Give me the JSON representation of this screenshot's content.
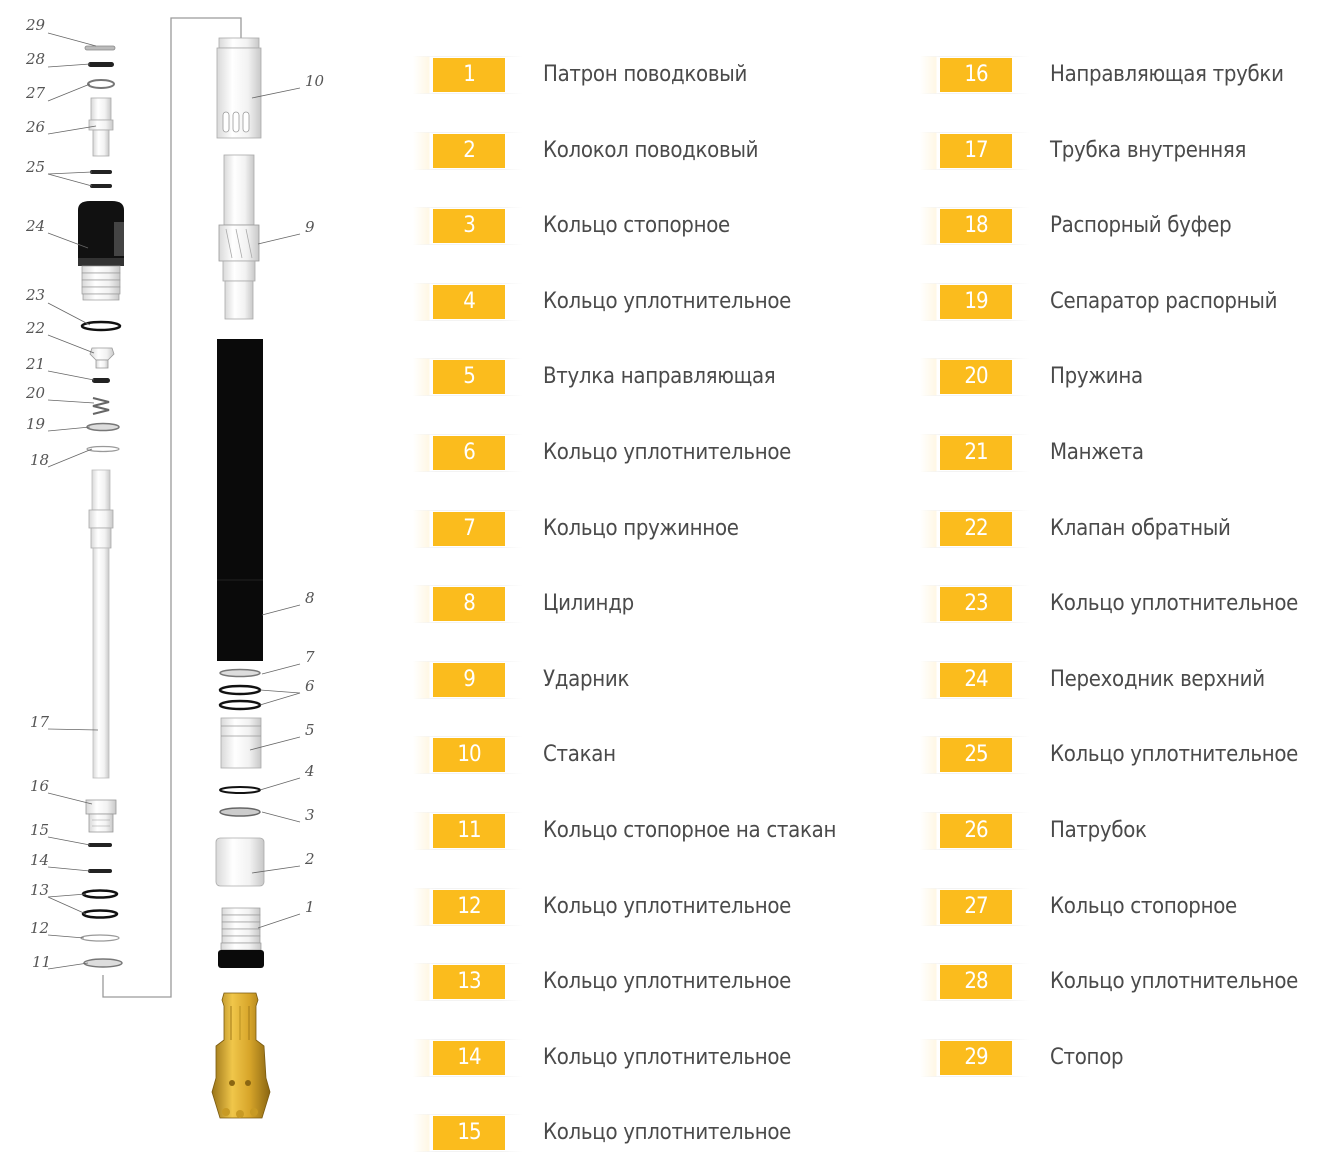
{
  "parts": [
    {
      "num": "1",
      "name": "Патрон поводковый"
    },
    {
      "num": "2",
      "name": "Колокол поводковый"
    },
    {
      "num": "3",
      "name": "Кольцо стопорное"
    },
    {
      "num": "4",
      "name": "Кольцо уплотнительное"
    },
    {
      "num": "5",
      "name": "Втулка направляющая"
    },
    {
      "num": "6",
      "name": "Кольцо уплотнительное"
    },
    {
      "num": "7",
      "name": "Кольцо пружинное"
    },
    {
      "num": "8",
      "name": "Цилиндр"
    },
    {
      "num": "9",
      "name": "Ударник"
    },
    {
      "num": "10",
      "name": "Стакан"
    },
    {
      "num": "11",
      "name": "Кольцо стопорное на стакан"
    },
    {
      "num": "12",
      "name": "Кольцо уплотнительное"
    },
    {
      "num": "13",
      "name": "Кольцо уплотнительное"
    },
    {
      "num": "14",
      "name": "Кольцо уплотнительное"
    },
    {
      "num": "15",
      "name": "Кольцо уплотнительное"
    },
    {
      "num": "16",
      "name": "Направляющая трубки"
    },
    {
      "num": "17",
      "name": "Трубка внутренняя"
    },
    {
      "num": "18",
      "name": "Распорный буфер"
    },
    {
      "num": "19",
      "name": "Сепаратор распорный"
    },
    {
      "num": "20",
      "name": "Пружина"
    },
    {
      "num": "21",
      "name": "Манжета"
    },
    {
      "num": "22",
      "name": "Клапан обратный"
    },
    {
      "num": "23",
      "name": "Кольцо уплотнительное"
    },
    {
      "num": "24",
      "name": "Переходник верхний"
    },
    {
      "num": "25",
      "name": "Кольцо уплотнительное"
    },
    {
      "num": "26",
      "name": "Патрубок"
    },
    {
      "num": "27",
      "name": "Кольцо стопорное"
    },
    {
      "num": "28",
      "name": "Кольцо уплотнительное"
    },
    {
      "num": "29",
      "name": "Стопор"
    }
  ],
  "colors": {
    "badge": "#fbbc1d",
    "badge_text": "#ffffff",
    "label_text": "#4a4a4a",
    "bit_gold": "#d4a52a"
  }
}
